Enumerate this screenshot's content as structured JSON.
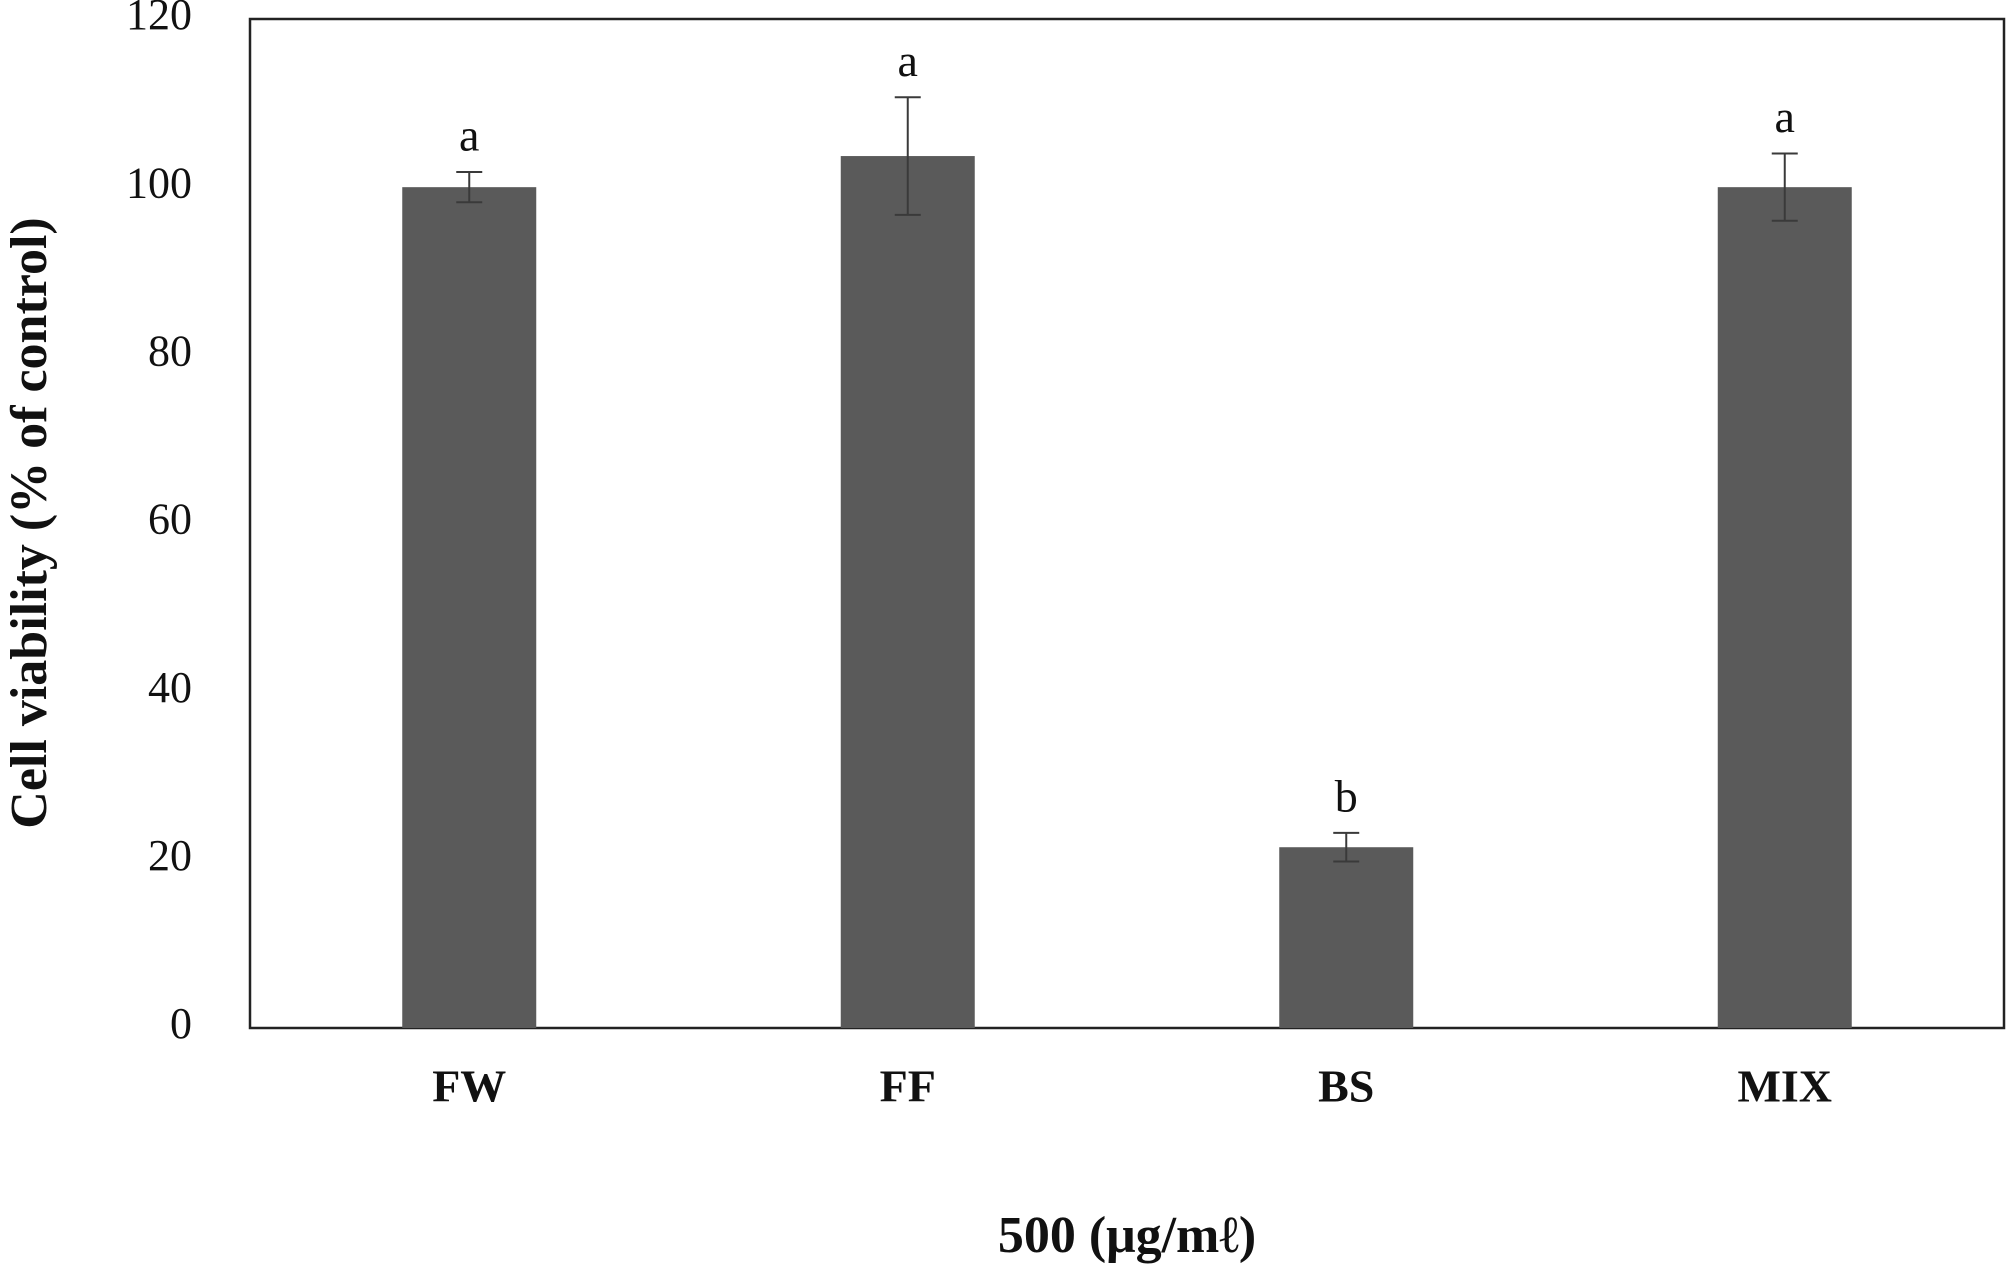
{
  "chart_data": {
    "type": "bar",
    "categories": [
      "FW",
      "FF",
      "BS",
      "MIX"
    ],
    "values": [
      100,
      103.7,
      21.5,
      100
    ],
    "errors": [
      1.8,
      7,
      1.7,
      4
    ],
    "annotations": [
      "a",
      "a",
      "b",
      "a"
    ],
    "color": "#5a5a5a",
    "y_label": "Cell viability (% of control)",
    "x_label": "500 (μg/mℓ)",
    "ylim": [
      0,
      120
    ],
    "yticks": [
      0,
      20,
      40,
      60,
      80,
      100,
      120
    ],
    "grid": false
  }
}
